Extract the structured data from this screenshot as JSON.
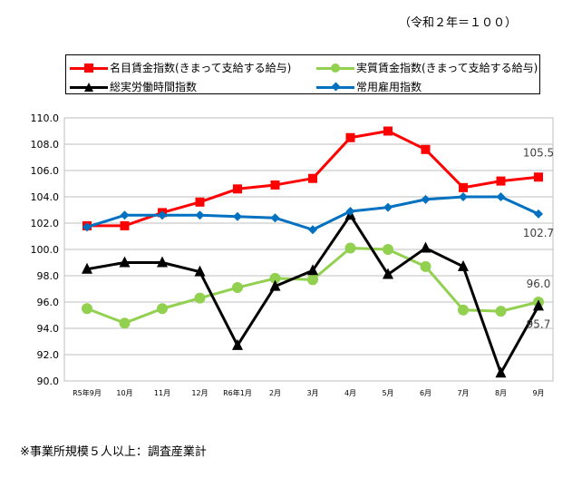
{
  "unit_note": "（令和２年＝１００）",
  "footnote": "※事業所規模５人以上：調査産業計",
  "colors": {
    "nominal": "#ff0000",
    "real": "#92d050",
    "hours": "#000000",
    "employment": "#0070c0"
  },
  "chart_data": {
    "type": "line",
    "categories": [
      "R5年9月",
      "10月",
      "11月",
      "12月",
      "R6年1月",
      "2月",
      "3月",
      "4月",
      "5月",
      "6月",
      "7月",
      "8月",
      "9月"
    ],
    "ylim": [
      90.0,
      110.0
    ],
    "yticks": [
      "90.0",
      "92.0",
      "94.0",
      "96.0",
      "98.0",
      "100.0",
      "102.0",
      "104.0",
      "106.0",
      "108.0",
      "110.0"
    ],
    "grid": true,
    "legend_position": "top",
    "series": [
      {
        "name": "名目賃金指数(きまって支給する給与)",
        "key": "nominal",
        "marker": "square",
        "values": [
          101.8,
          101.8,
          102.8,
          103.6,
          104.6,
          104.9,
          105.4,
          108.5,
          109.0,
          107.6,
          104.7,
          105.2,
          105.5
        ]
      },
      {
        "name": "実質賃金指数(きまって支給する給与)",
        "key": "real",
        "marker": "circle",
        "values": [
          95.5,
          94.4,
          95.5,
          96.3,
          97.1,
          97.8,
          97.7,
          100.1,
          100.0,
          98.7,
          95.4,
          95.3,
          96.0
        ]
      },
      {
        "name": "総実労働時間指数",
        "key": "hours",
        "marker": "triangle",
        "values": [
          98.5,
          99.0,
          99.0,
          98.3,
          92.7,
          97.2,
          98.4,
          102.6,
          98.1,
          100.1,
          98.7,
          90.6,
          95.7
        ]
      },
      {
        "name": "常用雇用指数",
        "key": "employment",
        "marker": "diamond",
        "values": [
          101.7,
          102.6,
          102.6,
          102.6,
          102.5,
          102.4,
          101.5,
          102.9,
          103.2,
          103.8,
          104.0,
          104.0,
          102.7
        ]
      }
    ],
    "annotations": [
      {
        "text": "105.5",
        "series": "nominal"
      },
      {
        "text": "102.7",
        "series": "employment"
      },
      {
        "text": "96.0",
        "series": "real"
      },
      {
        "text": "95.7",
        "series": "hours"
      }
    ]
  }
}
